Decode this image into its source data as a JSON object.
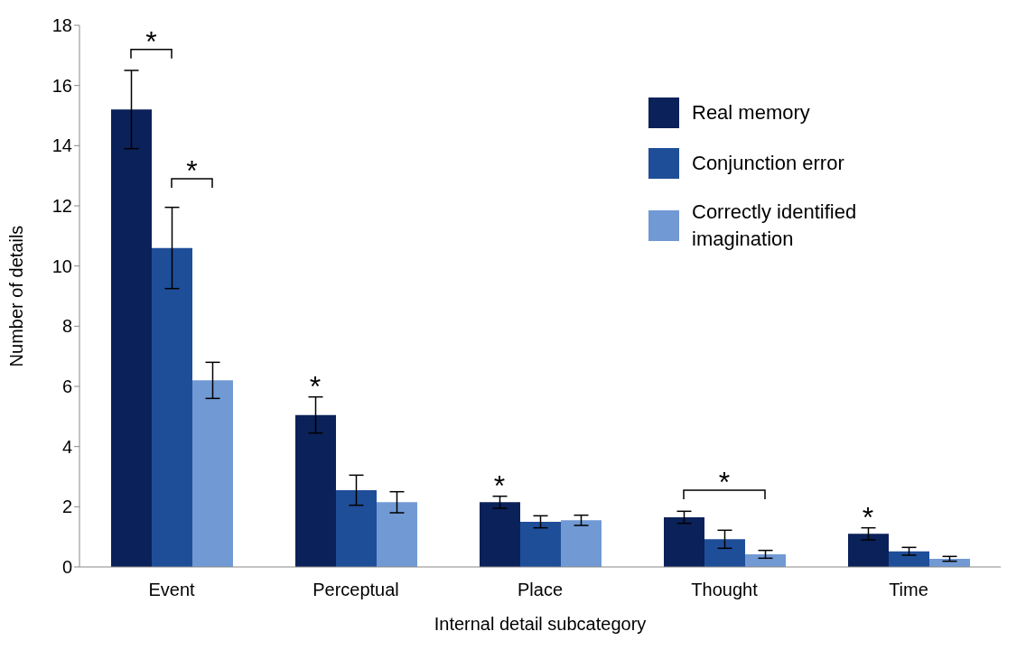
{
  "chart_data": {
    "type": "bar",
    "xlabel": "Internal detail subcategory",
    "ylabel": "Number of details",
    "categories": [
      "Event",
      "Perceptual",
      "Place",
      "Thought",
      "Time"
    ],
    "series": [
      {
        "name": "Real memory",
        "color": "#0b2159",
        "values": [
          15.2,
          5.05,
          2.15,
          1.65,
          1.1
        ],
        "errors": [
          1.3,
          0.6,
          0.2,
          0.2,
          0.2
        ]
      },
      {
        "name": "Conjunction error",
        "color": "#1f4e99",
        "values": [
          10.6,
          2.55,
          1.5,
          0.92,
          0.52
        ],
        "errors": [
          1.35,
          0.5,
          0.2,
          0.3,
          0.13
        ]
      },
      {
        "name": "Correctly identified imagination",
        "color": "#7199d4",
        "values": [
          6.2,
          2.15,
          1.55,
          0.42,
          0.27
        ],
        "errors": [
          0.6,
          0.35,
          0.17,
          0.13,
          0.08
        ]
      }
    ],
    "ylim": [
      0,
      18
    ],
    "yticks": [
      0,
      2,
      4,
      6,
      8,
      10,
      12,
      14,
      16,
      18
    ],
    "grid": false,
    "legend": "top right",
    "annotations": [
      "*",
      "*",
      "*",
      "*",
      "*",
      "*"
    ]
  }
}
